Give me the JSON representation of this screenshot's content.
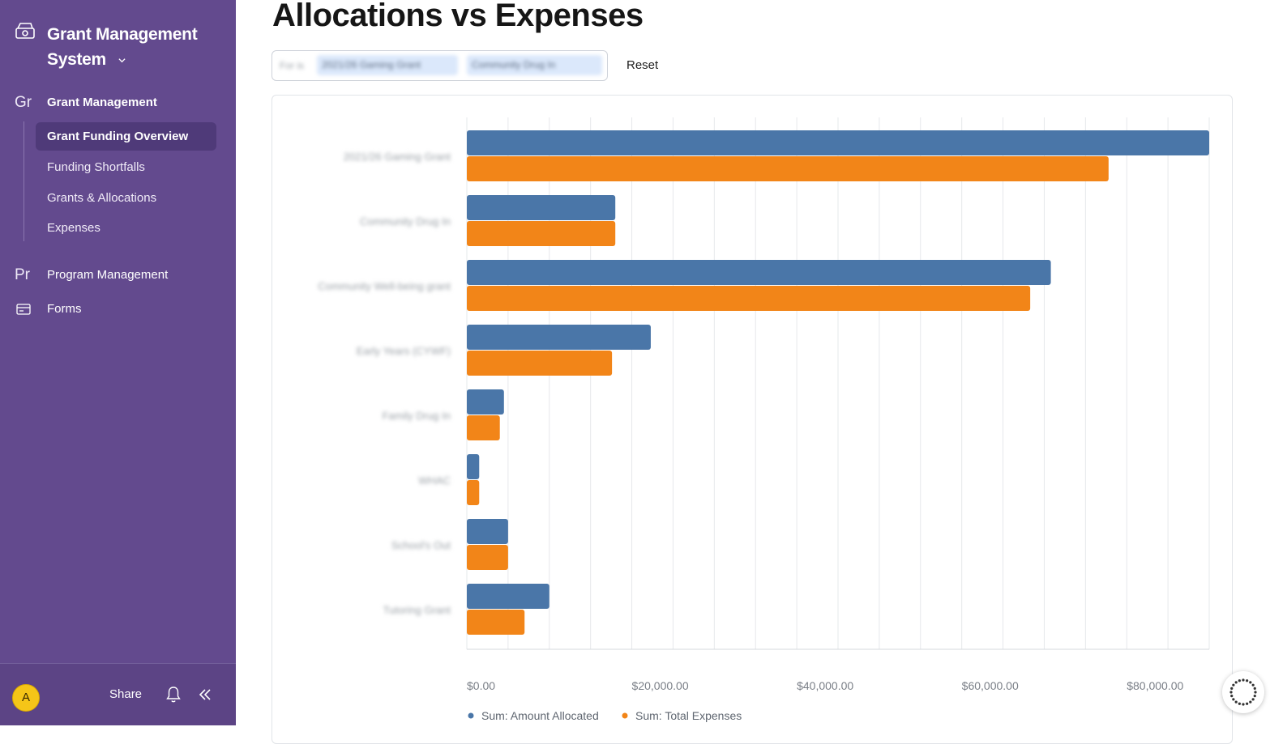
{
  "app": {
    "title": "Grant Management System",
    "icon": "cash-register-icon"
  },
  "sidebar": {
    "sections": [
      {
        "abbr": "Gr",
        "label": "Grant Management",
        "items": [
          {
            "label": "Grant Funding Overview",
            "active": true
          },
          {
            "label": "Funding Shortfalls",
            "active": false
          },
          {
            "label": "Grants & Allocations",
            "active": false
          },
          {
            "label": "Expenses",
            "active": false
          }
        ]
      },
      {
        "abbr": "Pr",
        "label": "Program Management"
      },
      {
        "icon": "form-icon",
        "label": "Forms"
      }
    ],
    "footer": {
      "avatar_initial": "A",
      "share_label": "Share",
      "bell_icon": "bell-icon",
      "collapse_icon": "double-chevron-left-icon"
    }
  },
  "main": {
    "page_title": "Allocations vs Expenses",
    "filter": {
      "prefix": "For is",
      "chips": [
        "2021/26 Gaming Grant",
        "Community Drug In"
      ]
    },
    "reset_label": "Reset"
  },
  "chart_data": {
    "type": "bar",
    "orientation": "horizontal",
    "categories": [
      "2021/26 Gaming Grant",
      "Community Drug In",
      "Community Well-being grant",
      "Early Years (CYWF)",
      "Family Drug In",
      "WHAC",
      "School's Out",
      "Tutoring Grant"
    ],
    "series": [
      {
        "name": "Sum: Amount Allocated",
        "color": "#4a76a8",
        "values": [
          90000,
          18000,
          70800,
          22300,
          4500,
          1500,
          5000,
          10000
        ]
      },
      {
        "name": "Sum: Total Expenses",
        "color": "#f28518",
        "values": [
          77800,
          18000,
          68300,
          17600,
          4000,
          1500,
          5000,
          7000
        ]
      }
    ],
    "x_ticks": [
      "$0.00",
      "$20,000.00",
      "$40,000.00",
      "$60,000.00",
      "$80,000.00"
    ],
    "xlim": [
      0,
      90000
    ],
    "grid": true,
    "legend": "bottom"
  }
}
